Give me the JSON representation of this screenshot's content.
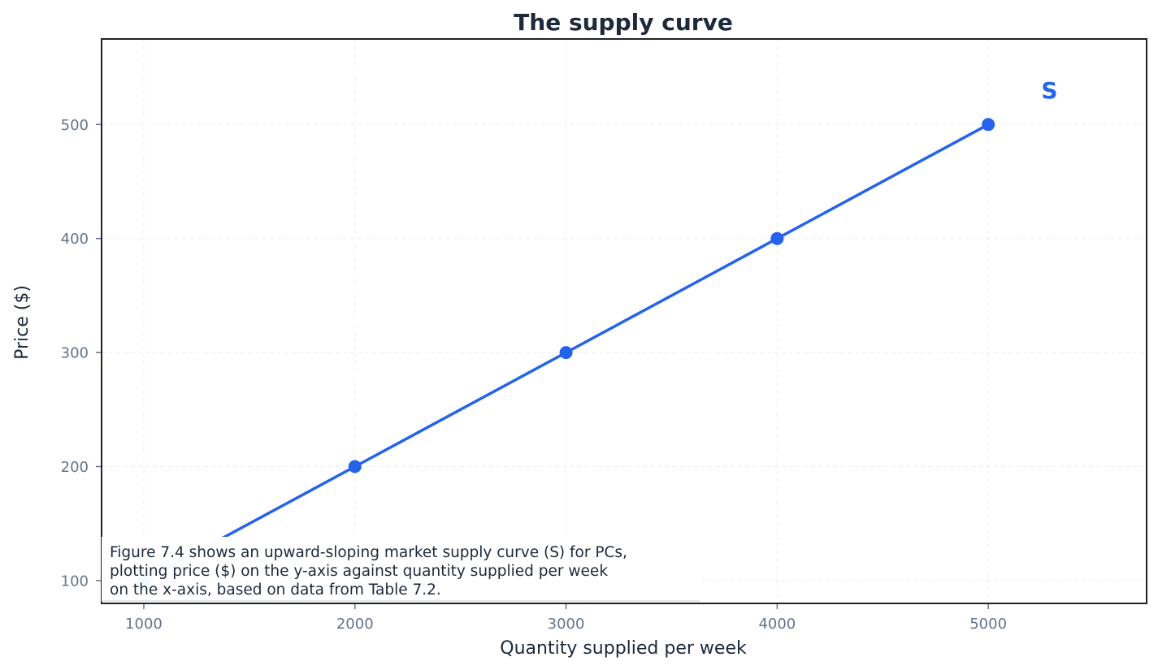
{
  "chart_data": {
    "type": "line",
    "title": "The supply curve",
    "xlabel": "Quantity supplied per week",
    "ylabel": "Price ($)",
    "x": [
      1000,
      2000,
      3000,
      4000,
      5000
    ],
    "series": [
      {
        "name": "S",
        "values": [
          100,
          200,
          300,
          400,
          500
        ],
        "color": "#2563eb",
        "markers": true
      }
    ],
    "x_ticks": [
      1000,
      2000,
      3000,
      4000,
      5000
    ],
    "y_ticks": [
      100,
      200,
      300,
      400,
      500
    ],
    "xlim": [
      800,
      5750
    ],
    "ylim": [
      80,
      575
    ],
    "grid": true,
    "annotations": [
      {
        "text": "S",
        "x": 5290,
        "y": 530,
        "color": "#2563eb"
      }
    ],
    "caption": "Figure 7.4 shows an upward-sloping market supply curve (S) for PCs,\nplotting price ($) on the y-axis against quantity supplied per week\non the x-axis, based on data from Table 7.2."
  },
  "colors": {
    "line": "#2563eb",
    "title": "#1e293b",
    "tick": "#64748b",
    "axis": "#222222",
    "grid": "#eeeeee"
  }
}
